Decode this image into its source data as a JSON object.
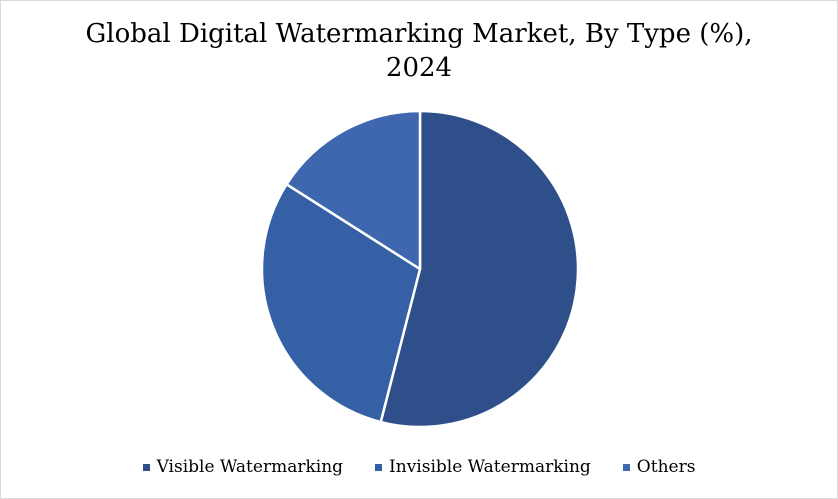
{
  "chart_data": {
    "type": "pie",
    "title_lines": [
      "Global Digital Watermarking Market, By Type (%),",
      "2024"
    ],
    "labels": [
      "Visible Watermarking",
      "Invisible Watermarking",
      "Others"
    ],
    "values": [
      54,
      30,
      16
    ],
    "colors": [
      "#2e4f8a",
      "#3560a6",
      "#3f67b0"
    ],
    "legend_position": "bottom",
    "start_angle_deg": 0,
    "direction": "clockwise"
  }
}
